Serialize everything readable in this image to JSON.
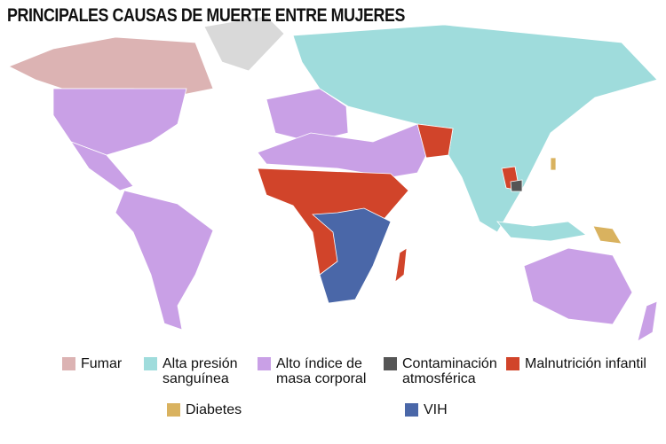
{
  "title": "PRINCIPALES CAUSAS DE MUERTE ENTRE MUJERES",
  "legend": [
    {
      "label": "Fumar",
      "color": "#dcb3b3"
    },
    {
      "label": "Alta presión sanguínea",
      "color": "#9fdcdc"
    },
    {
      "label": "Alto índice de masa corporal",
      "color": "#c9a0e6"
    },
    {
      "label": "Contaminación atmosférica",
      "color": "#555555"
    },
    {
      "label": "Malnutrición infantil",
      "color": "#d1442a"
    },
    {
      "label": "Diabetes",
      "color": "#d9b25f"
    },
    {
      "label": "VIH",
      "color": "#4a67a8"
    }
  ]
}
